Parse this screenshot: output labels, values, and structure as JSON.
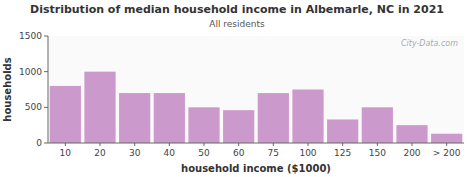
{
  "chart_data": {
    "type": "bar",
    "title": "Distribution of median household income in Albemarle, NC in 2021",
    "subtitle": "All residents",
    "xlabel": "household income ($1000)",
    "ylabel": "households",
    "annotations": [
      "City-Data.com"
    ],
    "categories": [
      "10",
      "20",
      "30",
      "40",
      "50",
      "60",
      "75",
      "100",
      "125",
      "150",
      "200",
      "> 200"
    ],
    "values": [
      800,
      1000,
      700,
      700,
      500,
      460,
      700,
      750,
      330,
      500,
      250,
      130
    ],
    "color": "#cc99cc",
    "ylim": [
      0,
      1500
    ],
    "yticks": [
      0,
      500,
      1000,
      1500
    ],
    "grid": false
  }
}
